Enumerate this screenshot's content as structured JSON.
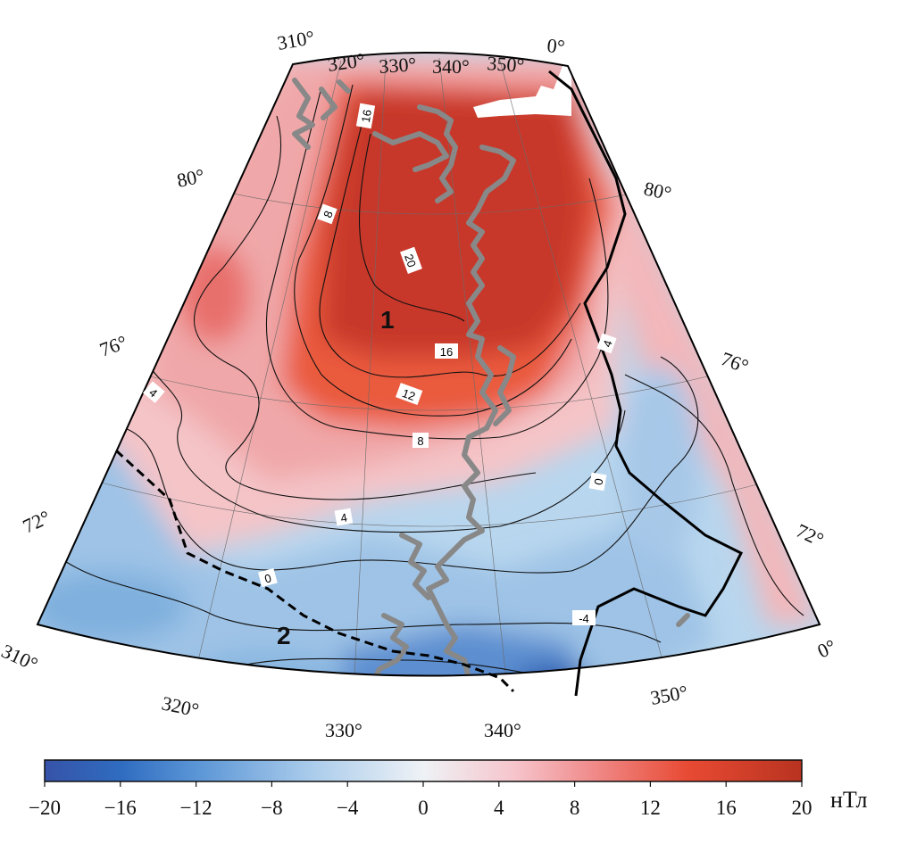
{
  "map": {
    "lon_top": [
      "310°",
      "320°",
      "330°",
      "340°",
      "350°",
      "0°"
    ],
    "lon_bottom": [
      "310°",
      "320°",
      "330°",
      "340°",
      "350°",
      "0°"
    ],
    "lat_left": [
      "80°",
      "76°",
      "72°"
    ],
    "lat_right": [
      "80°",
      "76°",
      "72°"
    ],
    "contour_labels": [
      "16",
      "8",
      "20",
      "16",
      "12",
      "8",
      "4",
      "0",
      "4",
      "0",
      "-4",
      "4"
    ],
    "region_labels": [
      "1",
      "2"
    ],
    "colors": {
      "land": "#888888",
      "contour": "#111111",
      "boundary": "#000000"
    }
  },
  "colorbar": {
    "ticks": [
      "−20",
      "−16",
      "−12",
      "−8",
      "−4",
      "0",
      "4",
      "8",
      "12",
      "16",
      "20"
    ],
    "unit": "нТл",
    "range": [
      -20,
      20
    ],
    "colors": [
      "#3653a8",
      "#2f6cc0",
      "#5a95d6",
      "#a9cbeb",
      "#eef2f6",
      "#f6c5cc",
      "#f08d8d",
      "#e84a33",
      "#b83320"
    ]
  }
}
